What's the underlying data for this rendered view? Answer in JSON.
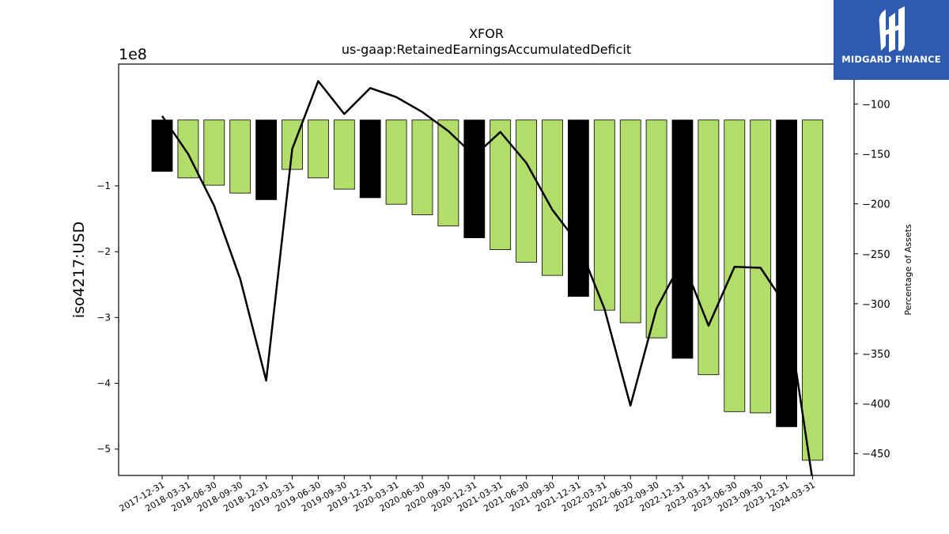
{
  "chart_data": {
    "type": "bar",
    "title": "XFOR",
    "subtitle": "us-gaap:RetainedEarningsAccumulatedDeficit",
    "ylabel": "iso4217:USD",
    "ylabel_right": "Percentage of Assets",
    "y_offset_label": "1e8",
    "categories": [
      "2017-12-31",
      "2018-03-31",
      "2018-06-30",
      "2018-09-30",
      "2018-12-31",
      "2019-03-31",
      "2019-06-30",
      "2019-09-30",
      "2019-12-31",
      "2020-03-31",
      "2020-06-30",
      "2020-09-30",
      "2020-12-31",
      "2021-03-31",
      "2021-06-30",
      "2021-09-30",
      "2021-12-31",
      "2022-03-31",
      "2022-06-30",
      "2022-09-30",
      "2022-12-31",
      "2023-03-31",
      "2023-06-30",
      "2023-09-30",
      "2023-12-31",
      "2024-03-31"
    ],
    "values": [
      -0.78,
      -0.88,
      -0.99,
      -1.11,
      -1.21,
      -0.75,
      -0.88,
      -1.05,
      -1.18,
      -1.28,
      -1.44,
      -1.61,
      -1.79,
      -1.97,
      -2.16,
      -2.36,
      -2.68,
      -2.89,
      -3.08,
      -3.31,
      -3.62,
      -3.87,
      -4.43,
      -4.45,
      -4.66,
      -5.17
    ],
    "bar_highlight": [
      "year-end",
      "quarter",
      "quarter",
      "quarter",
      "year-end",
      "quarter",
      "quarter",
      "quarter",
      "year-end",
      "quarter",
      "quarter",
      "quarter",
      "year-end",
      "quarter",
      "quarter",
      "quarter",
      "year-end",
      "quarter",
      "quarter",
      "quarter",
      "year-end",
      "quarter",
      "quarter",
      "quarter",
      "year-end",
      "quarter"
    ],
    "ylim": [
      -5.4,
      0.85
    ],
    "yticks": [
      -5,
      -4,
      -3,
      -2,
      -1
    ],
    "ytick_labels": [
      "−5",
      "−4",
      "−3",
      "−2",
      "−1"
    ],
    "line_values": [
      -112,
      -150,
      -202,
      -275,
      -377,
      -145,
      -77,
      -110,
      -84,
      -93,
      -108,
      -127,
      -152,
      -128,
      -159,
      -206,
      -240,
      -305,
      -402,
      -305,
      -256,
      -322,
      -263,
      -264,
      -303,
      -477
    ],
    "ylim_right": [
      -472,
      -60
    ],
    "yticks_right": [
      -100,
      -150,
      -200,
      -250,
      -300,
      -350,
      -400,
      -450
    ],
    "ytick_labels_right": [
      "−100",
      "−150",
      "−200",
      "−250",
      "−300",
      "−350",
      "−400",
      "−450"
    ],
    "colors": {
      "quarter": "#b2dd6a",
      "year-end": "#000000",
      "line": "#000000",
      "edge": "#000000"
    },
    "grid": false
  },
  "logo": {
    "name": "MIDGARD FINANCE",
    "bg": "#2e5bb0"
  }
}
